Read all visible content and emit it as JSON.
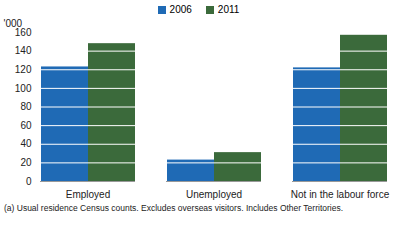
{
  "chart_data": {
    "type": "bar",
    "y_label": "'000",
    "categories": [
      "Employed",
      "Unemployed",
      "Not in the labour force"
    ],
    "series": [
      {
        "name": "2006",
        "color": "#1f6ab5",
        "values": [
          123,
          23,
          122
        ]
      },
      {
        "name": "2011",
        "color": "#3b6a3b",
        "values": [
          148,
          31,
          157
        ]
      }
    ],
    "ylim": [
      0,
      160
    ],
    "yticks": [
      0,
      20,
      40,
      60,
      80,
      100,
      120,
      140,
      160
    ],
    "grid": true,
    "legend": "top",
    "note": "(a) Usual residence Census counts. Excludes overseas visitors. Includes Other Territories."
  }
}
